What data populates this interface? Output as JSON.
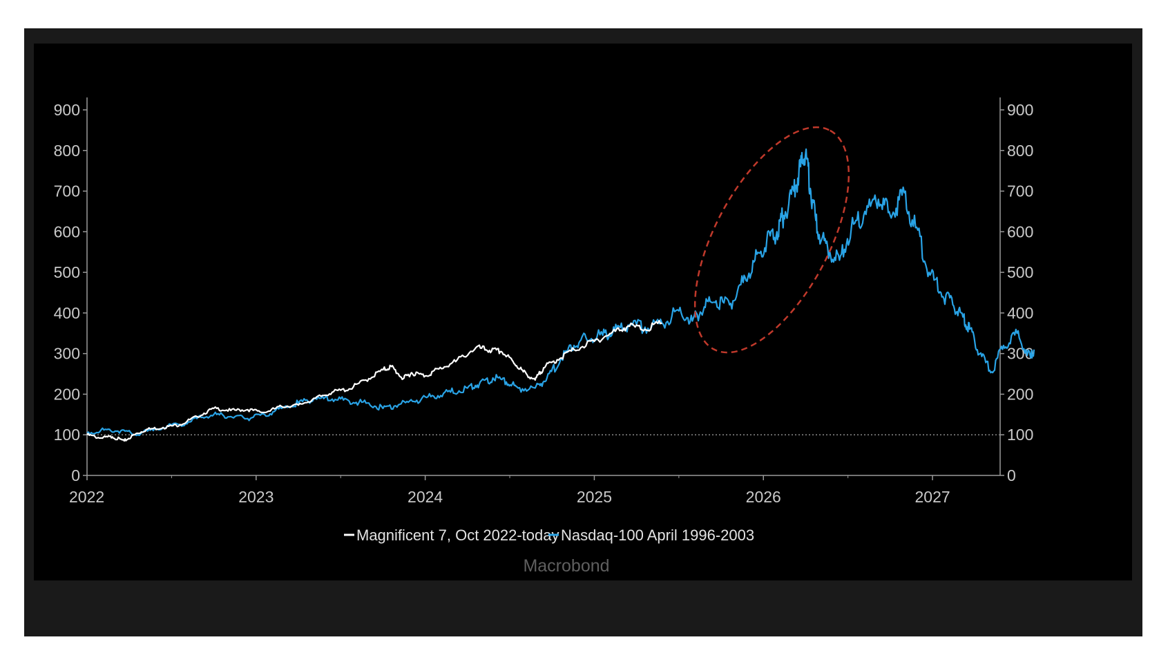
{
  "chart_data": {
    "type": "line",
    "title": "",
    "xlabel": "",
    "ylabel": "",
    "x_tick_labels": [
      "2022",
      "2023",
      "2024",
      "2025",
      "2026",
      "2027"
    ],
    "y_tick_labels": [
      "0",
      "100",
      "200",
      "300",
      "400",
      "500",
      "600",
      "700",
      "800",
      "900"
    ],
    "ylim": [
      0,
      900
    ],
    "xlim": [
      2022.0,
      2027.4
    ],
    "grid": false,
    "reference_line": {
      "y": 100,
      "style": "dotted"
    },
    "legend_position": "bottom-center",
    "annotation": {
      "type": "dashed-ellipse",
      "color": "#c0392b",
      "label": "",
      "around_x": [
        2025.7,
        2026.4
      ],
      "around_y": [
        360,
        800
      ]
    },
    "source": "Macrobond",
    "series": [
      {
        "name": "Magnificent 7, Oct 2022-today",
        "color": "#ffffff",
        "points": [
          [
            2022.0,
            100
          ],
          [
            2022.08,
            92
          ],
          [
            2022.15,
            95
          ],
          [
            2022.22,
            85
          ],
          [
            2022.28,
            100
          ],
          [
            2022.35,
            113
          ],
          [
            2022.45,
            118
          ],
          [
            2022.55,
            125
          ],
          [
            2022.65,
            145
          ],
          [
            2022.75,
            165
          ],
          [
            2022.85,
            160
          ],
          [
            2022.95,
            162
          ],
          [
            2023.05,
            155
          ],
          [
            2023.15,
            170
          ],
          [
            2023.25,
            173
          ],
          [
            2023.35,
            190
          ],
          [
            2023.45,
            205
          ],
          [
            2023.55,
            213
          ],
          [
            2023.65,
            235
          ],
          [
            2023.75,
            260
          ],
          [
            2023.8,
            268
          ],
          [
            2023.87,
            238
          ],
          [
            2023.92,
            253
          ],
          [
            2024.0,
            245
          ],
          [
            2024.08,
            262
          ],
          [
            2024.18,
            280
          ],
          [
            2024.3,
            315
          ],
          [
            2024.38,
            308
          ],
          [
            2024.45,
            305
          ],
          [
            2024.52,
            280
          ],
          [
            2024.58,
            255
          ],
          [
            2024.65,
            235
          ],
          [
            2024.7,
            265
          ],
          [
            2024.78,
            285
          ],
          [
            2024.88,
            310
          ],
          [
            2025.0,
            330
          ],
          [
            2025.1,
            350
          ],
          [
            2025.2,
            368
          ],
          [
            2025.3,
            360
          ],
          [
            2025.4,
            375
          ]
        ]
      },
      {
        "name": "Nasdaq-100 April 1996-2003",
        "color": "#29a3e6",
        "points": [
          [
            2022.0,
            105
          ],
          [
            2022.1,
            112
          ],
          [
            2022.2,
            110
          ],
          [
            2022.3,
            100
          ],
          [
            2022.4,
            115
          ],
          [
            2022.55,
            125
          ],
          [
            2022.65,
            140
          ],
          [
            2022.75,
            150
          ],
          [
            2022.85,
            145
          ],
          [
            2022.95,
            140
          ],
          [
            2023.05,
            150
          ],
          [
            2023.15,
            165
          ],
          [
            2023.25,
            178
          ],
          [
            2023.35,
            190
          ],
          [
            2023.45,
            188
          ],
          [
            2023.55,
            183
          ],
          [
            2023.65,
            178
          ],
          [
            2023.75,
            165
          ],
          [
            2023.85,
            175
          ],
          [
            2023.95,
            185
          ],
          [
            2024.05,
            195
          ],
          [
            2024.15,
            205
          ],
          [
            2024.25,
            215
          ],
          [
            2024.32,
            225
          ],
          [
            2024.4,
            240
          ],
          [
            2024.48,
            230
          ],
          [
            2024.55,
            215
          ],
          [
            2024.65,
            215
          ],
          [
            2024.72,
            240
          ],
          [
            2024.8,
            285
          ],
          [
            2024.88,
            320
          ],
          [
            2024.95,
            340
          ],
          [
            2025.05,
            345
          ],
          [
            2025.12,
            355
          ],
          [
            2025.2,
            370
          ],
          [
            2025.3,
            365
          ],
          [
            2025.4,
            375
          ],
          [
            2025.5,
            405
          ],
          [
            2025.58,
            380
          ],
          [
            2025.65,
            415
          ],
          [
            2025.72,
            430
          ],
          [
            2025.8,
            420
          ],
          [
            2025.88,
            475
          ],
          [
            2025.95,
            530
          ],
          [
            2026.02,
            580
          ],
          [
            2026.08,
            600
          ],
          [
            2026.12,
            640
          ],
          [
            2026.18,
            700
          ],
          [
            2026.22,
            760
          ],
          [
            2026.25,
            795
          ],
          [
            2026.28,
            700
          ],
          [
            2026.32,
            600
          ],
          [
            2026.38,
            560
          ],
          [
            2026.45,
            530
          ],
          [
            2026.52,
            610
          ],
          [
            2026.6,
            650
          ],
          [
            2026.68,
            680
          ],
          [
            2026.75,
            640
          ],
          [
            2026.82,
            690
          ],
          [
            2026.9,
            610
          ],
          [
            2026.98,
            500
          ],
          [
            2027.05,
            450
          ],
          [
            2027.12,
            420
          ],
          [
            2027.18,
            390
          ],
          [
            2027.22,
            360
          ],
          [
            2027.28,
            300
          ],
          [
            2027.35,
            255
          ],
          [
            2027.42,
            320
          ],
          [
            2027.5,
            350
          ],
          [
            2027.58,
            290
          ],
          [
            2027.6,
            310
          ]
        ]
      }
    ]
  }
}
